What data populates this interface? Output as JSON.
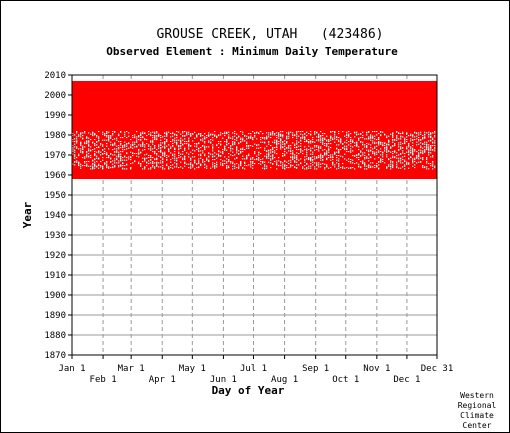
{
  "chart_data": {
    "type": "heatmap",
    "title": "GROUSE CREEK, UTAH   (423486)",
    "subtitle": "Observed Element : Minimum Daily Temperature",
    "xlabel": "Day of Year",
    "ylabel": "Year",
    "x_range_days": [
      1,
      365
    ],
    "ylim": [
      1870,
      2010
    ],
    "y_ticks": [
      1870,
      1880,
      1890,
      1900,
      1910,
      1920,
      1930,
      1940,
      1950,
      1960,
      1970,
      1980,
      1990,
      2000,
      2010
    ],
    "x_ticks_top": [
      {
        "label": "Jan 1",
        "day": 1
      },
      {
        "label": "Mar 1",
        "day": 60
      },
      {
        "label": "May 1",
        "day": 121
      },
      {
        "label": "Jul 1",
        "day": 182
      },
      {
        "label": "Sep 1",
        "day": 244
      },
      {
        "label": "Nov 1",
        "day": 305
      },
      {
        "label": "Dec 31",
        "day": 365
      }
    ],
    "x_ticks_bottom": [
      {
        "label": "Feb 1",
        "day": 32
      },
      {
        "label": "Apr 1",
        "day": 91
      },
      {
        "label": "Jun 1",
        "day": 152
      },
      {
        "label": "Aug 1",
        "day": 213
      },
      {
        "label": "Oct 1",
        "day": 274
      },
      {
        "label": "Dec 1",
        "day": 335
      }
    ],
    "grid": true,
    "color": "#ff0000",
    "observed_periods": [
      {
        "start_year": 1958,
        "end_year": 1962,
        "start_day": 1,
        "end_day": 365
      },
      {
        "start_year": 1963,
        "end_year": 1981,
        "start_day": 1,
        "end_day": 365,
        "pattern": "sparse-gaps"
      },
      {
        "start_year": 1982,
        "end_year": 2006,
        "start_day": 1,
        "end_day": 365
      },
      {
        "start_year": 2005,
        "end_year": 2006,
        "start_day": 1,
        "end_day": 52
      }
    ]
  },
  "credit": [
    "Western",
    "Regional",
    "Climate",
    "Center"
  ]
}
